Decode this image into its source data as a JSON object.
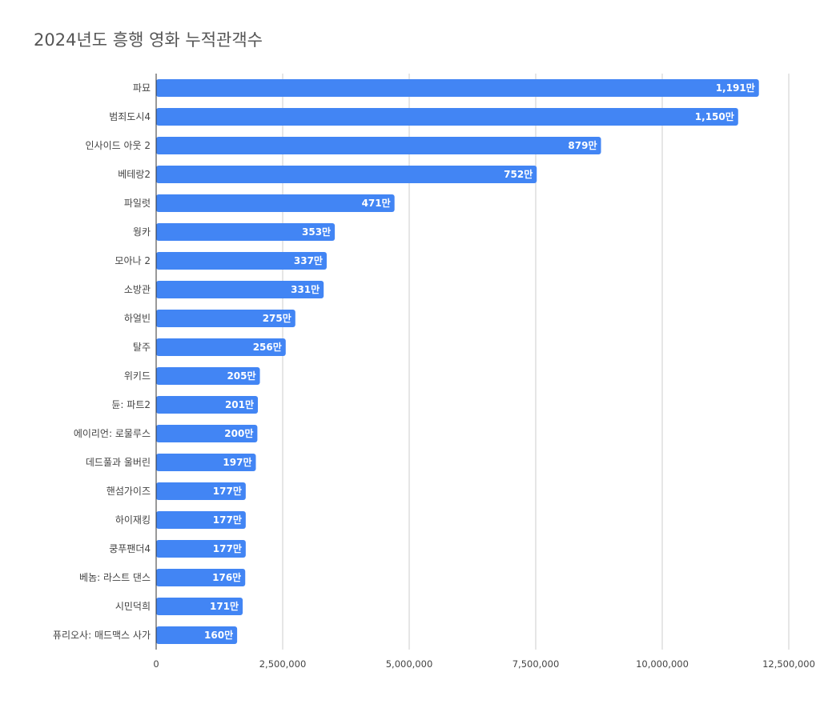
{
  "chart_data": {
    "type": "bar",
    "orientation": "horizontal",
    "title": "2024년도 흥행 영화 누적관객수",
    "xlabel": "",
    "ylabel": "",
    "xlim": [
      0,
      12500000
    ],
    "x_ticks": [
      0,
      2500000,
      5000000,
      7500000,
      10000000,
      12500000
    ],
    "x_tick_labels": [
      "0",
      "2,500,000",
      "5,000,000",
      "7,500,000",
      "10,000,000",
      "12,500,000"
    ],
    "grid": true,
    "bar_color": "#4285f4",
    "categories": [
      "파묘",
      "범죄도시4",
      "인사이드 아웃 2",
      "베테랑2",
      "파일럿",
      "웡카",
      "모아나 2",
      "소방관",
      "하얼빈",
      "탈주",
      "위키드",
      "듄: 파트2",
      "에이리언: 로물루스",
      "데드풀과 울버린",
      "핸섬가이즈",
      "하이재킹",
      "쿵푸팬더4",
      "베놈: 라스트 댄스",
      "시민덕희",
      "퓨리오사: 매드맥스 사가"
    ],
    "values": [
      11910000,
      11500000,
      8790000,
      7520000,
      4710000,
      3530000,
      3370000,
      3310000,
      2750000,
      2560000,
      2050000,
      2010000,
      2000000,
      1970000,
      1770000,
      1770000,
      1770000,
      1760000,
      1710000,
      1600000
    ],
    "data_labels": [
      "1,191만",
      "1,150만",
      "879만",
      "752만",
      "471만",
      "353만",
      "337만",
      "331만",
      "275만",
      "256만",
      "205만",
      "201만",
      "200만",
      "197만",
      "177만",
      "177만",
      "177만",
      "176만",
      "171만",
      "160만"
    ]
  }
}
